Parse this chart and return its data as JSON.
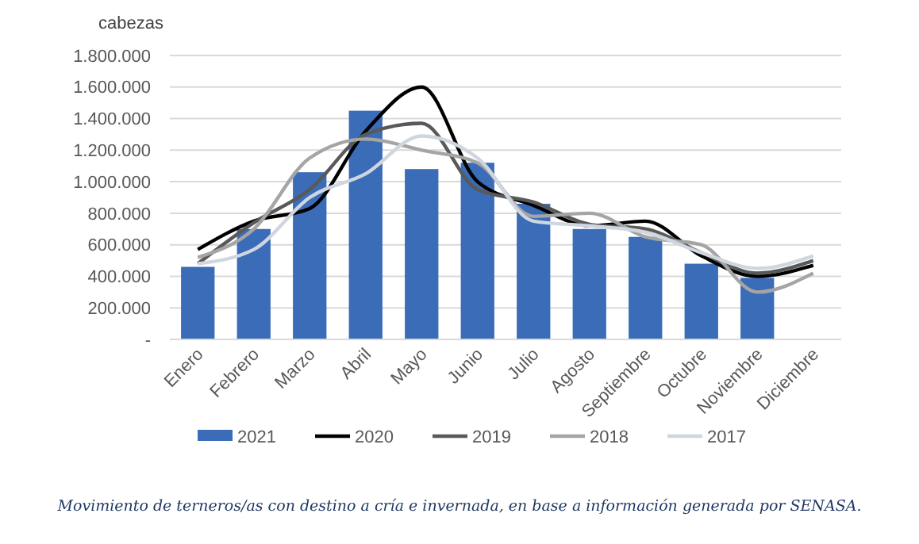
{
  "chart_data": {
    "type": "bar",
    "ylabel": "cabezas",
    "categories": [
      "Enero",
      "Febrero",
      "Marzo",
      "Abril",
      "Mayo",
      "Junio",
      "Julio",
      "Agosto",
      "Septiembre",
      "Octubre",
      "Noviembre",
      "Diciembre"
    ],
    "series": [
      {
        "name": "2021",
        "color": "#3a6cb8",
        "values": [
          460000,
          700000,
          1060000,
          1450000,
          1080000,
          1120000,
          860000,
          700000,
          650000,
          480000,
          390000,
          null
        ]
      },
      {
        "name": "2020",
        "type": "line",
        "color": "#000000",
        "values": [
          570000,
          750000,
          830000,
          1320000,
          1600000,
          1000000,
          850000,
          720000,
          750000,
          530000,
          400000,
          470000
        ]
      },
      {
        "name": "2019",
        "type": "line",
        "color": "#595959",
        "values": [
          480000,
          740000,
          950000,
          1300000,
          1370000,
          950000,
          870000,
          730000,
          700000,
          550000,
          420000,
          500000
        ]
      },
      {
        "name": "2018",
        "type": "line",
        "color": "#a5a5a5",
        "values": [
          520000,
          700000,
          1150000,
          1270000,
          1200000,
          1120000,
          780000,
          800000,
          650000,
          600000,
          300000,
          420000
        ]
      },
      {
        "name": "2017",
        "type": "line",
        "color": "#d0d6e0",
        "values": [
          480000,
          570000,
          900000,
          1050000,
          1290000,
          1150000,
          750000,
          720000,
          680000,
          550000,
          450000,
          530000
        ]
      }
    ],
    "ylim": [
      0,
      1800000
    ],
    "yticks": [
      {
        "value": 0,
        "label": "-"
      },
      {
        "value": 200000,
        "label": "200.000"
      },
      {
        "value": 400000,
        "label": "400.000"
      },
      {
        "value": 600000,
        "label": "600.000"
      },
      {
        "value": 800000,
        "label": "800.000"
      },
      {
        "value": 1000000,
        "label": "1.000.000"
      },
      {
        "value": 1200000,
        "label": "1.200.000"
      },
      {
        "value": 1400000,
        "label": "1.400.000"
      },
      {
        "value": 1600000,
        "label": "1.600.000"
      },
      {
        "value": 1800000,
        "label": "1.800.000"
      }
    ],
    "grid": "y",
    "legend": "bottom",
    "line_style": "solid",
    "marker": "none",
    "annotations": [
      "Movimiento de terneros/as con destino a cría e invernada, en base a información generada por SENASA."
    ]
  }
}
